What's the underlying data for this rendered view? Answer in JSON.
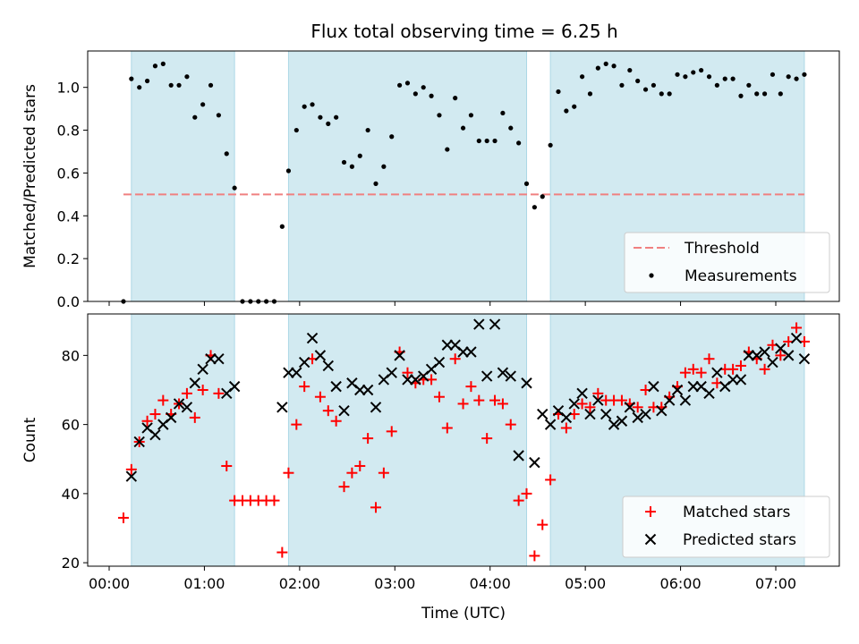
{
  "colors": {
    "shade": "#add8e6",
    "threshold": "#f08080",
    "measurement": "#000000",
    "matched": "#ff0000",
    "predicted": "#000000"
  },
  "chart_data": [
    {
      "type": "scatter",
      "title": "Flux total observing time = 6.25 h",
      "xlabel": "",
      "ylabel": "Matched/Predicted stars",
      "xlim": [
        "00:00",
        "07:30"
      ],
      "ylim": [
        0,
        1.17
      ],
      "yticks": [
        "0.0",
        "0.2",
        "0.4",
        "0.6",
        "0.8",
        "1.0"
      ],
      "grid": false,
      "legend_position": "lower-right",
      "shaded_intervals": [
        [
          "00:14",
          "01:19"
        ],
        [
          "01:53",
          "04:23"
        ],
        [
          "04:38",
          "07:18"
        ]
      ],
      "threshold": {
        "name": "Threshold",
        "value": 0.5,
        "x_range": [
          "00:09",
          "07:18"
        ],
        "style": "dashed"
      },
      "series": [
        {
          "name": "Measurements",
          "marker": "dot",
          "points": [
            [
              "00:09",
              0.0
            ],
            [
              "00:14",
              1.04
            ],
            [
              "00:19",
              1.0
            ],
            [
              "00:24",
              1.03
            ],
            [
              "00:29",
              1.1
            ],
            [
              "00:34",
              1.11
            ],
            [
              "00:39",
              1.01
            ],
            [
              "00:44",
              1.01
            ],
            [
              "00:49",
              1.05
            ],
            [
              "00:54",
              0.86
            ],
            [
              "00:59",
              0.92
            ],
            [
              "01:04",
              1.01
            ],
            [
              "01:09",
              0.87
            ],
            [
              "01:14",
              0.69
            ],
            [
              "01:19",
              0.53
            ],
            [
              "01:24",
              0.0
            ],
            [
              "01:29",
              0.0
            ],
            [
              "01:34",
              0.0
            ],
            [
              "01:39",
              0.0
            ],
            [
              "01:44",
              0.0
            ],
            [
              "01:49",
              0.35
            ],
            [
              "01:53",
              0.61
            ],
            [
              "01:58",
              0.8
            ],
            [
              "02:03",
              0.91
            ],
            [
              "02:08",
              0.92
            ],
            [
              "02:13",
              0.86
            ],
            [
              "02:18",
              0.83
            ],
            [
              "02:23",
              0.86
            ],
            [
              "02:28",
              0.65
            ],
            [
              "02:33",
              0.63
            ],
            [
              "02:38",
              0.68
            ],
            [
              "02:43",
              0.8
            ],
            [
              "02:48",
              0.55
            ],
            [
              "02:53",
              0.63
            ],
            [
              "02:58",
              0.77
            ],
            [
              "03:03",
              1.01
            ],
            [
              "03:08",
              1.02
            ],
            [
              "03:13",
              0.97
            ],
            [
              "03:18",
              1.0
            ],
            [
              "03:23",
              0.96
            ],
            [
              "03:28",
              0.87
            ],
            [
              "03:33",
              0.71
            ],
            [
              "03:38",
              0.95
            ],
            [
              "03:43",
              0.81
            ],
            [
              "03:48",
              0.87
            ],
            [
              "03:53",
              0.75
            ],
            [
              "03:58",
              0.75
            ],
            [
              "04:03",
              0.75
            ],
            [
              "04:08",
              0.88
            ],
            [
              "04:13",
              0.81
            ],
            [
              "04:18",
              0.74
            ],
            [
              "04:23",
              0.55
            ],
            [
              "04:28",
              0.44
            ],
            [
              "04:33",
              0.49
            ],
            [
              "04:38",
              0.73
            ],
            [
              "04:43",
              0.98
            ],
            [
              "04:48",
              0.89
            ],
            [
              "04:53",
              0.91
            ],
            [
              "04:58",
              1.05
            ],
            [
              "05:03",
              0.97
            ],
            [
              "05:08",
              1.09
            ],
            [
              "05:13",
              1.11
            ],
            [
              "05:18",
              1.1
            ],
            [
              "05:23",
              1.01
            ],
            [
              "05:28",
              1.08
            ],
            [
              "05:33",
              1.03
            ],
            [
              "05:38",
              0.99
            ],
            [
              "05:43",
              1.01
            ],
            [
              "05:48",
              0.97
            ],
            [
              "05:53",
              0.97
            ],
            [
              "05:58",
              1.06
            ],
            [
              "06:03",
              1.05
            ],
            [
              "06:08",
              1.07
            ],
            [
              "06:13",
              1.08
            ],
            [
              "06:18",
              1.05
            ],
            [
              "06:23",
              1.01
            ],
            [
              "06:28",
              1.04
            ],
            [
              "06:33",
              1.04
            ],
            [
              "06:38",
              0.96
            ],
            [
              "06:43",
              1.01
            ],
            [
              "06:48",
              0.97
            ],
            [
              "06:53",
              0.97
            ],
            [
              "06:58",
              1.06
            ],
            [
              "07:03",
              0.97
            ],
            [
              "07:08",
              1.05
            ],
            [
              "07:13",
              1.04
            ],
            [
              "07:18",
              1.06
            ]
          ]
        }
      ]
    },
    {
      "type": "scatter",
      "title": "",
      "xlabel": "Time (UTC)",
      "ylabel": "Count",
      "xlim": [
        "00:00",
        "07:30"
      ],
      "ylim": [
        19,
        92
      ],
      "xticks": [
        "00:00",
        "01:00",
        "02:00",
        "03:00",
        "04:00",
        "05:00",
        "06:00",
        "07:00"
      ],
      "yticks": [
        "20",
        "40",
        "60",
        "80"
      ],
      "grid": false,
      "legend_position": "lower-right",
      "shaded_intervals": [
        [
          "00:14",
          "01:19"
        ],
        [
          "01:53",
          "04:23"
        ],
        [
          "04:38",
          "07:18"
        ]
      ],
      "series": [
        {
          "name": "Matched stars",
          "marker": "plus",
          "points": [
            [
              "00:09",
              33
            ],
            [
              "00:14",
              47
            ],
            [
              "00:19",
              55
            ],
            [
              "00:24",
              61
            ],
            [
              "00:29",
              63
            ],
            [
              "00:34",
              67
            ],
            [
              "00:39",
              63
            ],
            [
              "00:44",
              66
            ],
            [
              "00:49",
              69
            ],
            [
              "00:54",
              62
            ],
            [
              "00:59",
              70
            ],
            [
              "01:04",
              80
            ],
            [
              "01:09",
              69
            ],
            [
              "01:14",
              48
            ],
            [
              "01:19",
              38
            ],
            [
              "01:24",
              38
            ],
            [
              "01:29",
              38
            ],
            [
              "01:34",
              38
            ],
            [
              "01:39",
              38
            ],
            [
              "01:44",
              38
            ],
            [
              "01:49",
              23
            ],
            [
              "01:53",
              46
            ],
            [
              "01:58",
              60
            ],
            [
              "02:03",
              71
            ],
            [
              "02:08",
              79
            ],
            [
              "02:13",
              68
            ],
            [
              "02:18",
              64
            ],
            [
              "02:23",
              61
            ],
            [
              "02:28",
              42
            ],
            [
              "02:33",
              46
            ],
            [
              "02:38",
              48
            ],
            [
              "02:43",
              56
            ],
            [
              "02:48",
              36
            ],
            [
              "02:53",
              46
            ],
            [
              "02:58",
              58
            ],
            [
              "03:03",
              81
            ],
            [
              "03:08",
              75
            ],
            [
              "03:13",
              72
            ],
            [
              "03:18",
              73
            ],
            [
              "03:23",
              73
            ],
            [
              "03:28",
              68
            ],
            [
              "03:33",
              59
            ],
            [
              "03:38",
              79
            ],
            [
              "03:43",
              66
            ],
            [
              "03:48",
              71
            ],
            [
              "03:53",
              67
            ],
            [
              "03:58",
              56
            ],
            [
              "04:03",
              67
            ],
            [
              "04:08",
              66
            ],
            [
              "04:13",
              60
            ],
            [
              "04:18",
              38
            ],
            [
              "04:23",
              40
            ],
            [
              "04:28",
              22
            ],
            [
              "04:33",
              31
            ],
            [
              "04:38",
              44
            ],
            [
              "04:43",
              63
            ],
            [
              "04:48",
              59
            ],
            [
              "04:53",
              63
            ],
            [
              "04:58",
              66
            ],
            [
              "05:03",
              65
            ],
            [
              "05:08",
              69
            ],
            [
              "05:13",
              67
            ],
            [
              "05:18",
              67
            ],
            [
              "05:23",
              67
            ],
            [
              "05:28",
              66
            ],
            [
              "05:33",
              65
            ],
            [
              "05:38",
              70
            ],
            [
              "05:43",
              65
            ],
            [
              "05:48",
              65
            ],
            [
              "05:53",
              68
            ],
            [
              "05:58",
              71
            ],
            [
              "06:03",
              75
            ],
            [
              "06:08",
              76
            ],
            [
              "06:13",
              75
            ],
            [
              "06:18",
              79
            ],
            [
              "06:23",
              72
            ],
            [
              "06:28",
              76
            ],
            [
              "06:33",
              76
            ],
            [
              "06:38",
              77
            ],
            [
              "06:43",
              81
            ],
            [
              "06:48",
              79
            ],
            [
              "06:53",
              76
            ],
            [
              "06:58",
              83
            ],
            [
              "07:03",
              80
            ],
            [
              "07:08",
              84
            ],
            [
              "07:13",
              88
            ],
            [
              "07:18",
              84
            ]
          ]
        },
        {
          "name": "Predicted stars",
          "marker": "x",
          "points": [
            [
              "00:14",
              45
            ],
            [
              "00:19",
              55
            ],
            [
              "00:24",
              59
            ],
            [
              "00:29",
              57
            ],
            [
              "00:34",
              60
            ],
            [
              "00:39",
              62
            ],
            [
              "00:44",
              66
            ],
            [
              "00:49",
              65
            ],
            [
              "00:54",
              72
            ],
            [
              "00:59",
              76
            ],
            [
              "01:04",
              79
            ],
            [
              "01:09",
              79
            ],
            [
              "01:14",
              69
            ],
            [
              "01:19",
              71
            ],
            [
              "01:49",
              65
            ],
            [
              "01:53",
              75
            ],
            [
              "01:58",
              75
            ],
            [
              "02:03",
              78
            ],
            [
              "02:08",
              85
            ],
            [
              "02:13",
              80
            ],
            [
              "02:18",
              77
            ],
            [
              "02:23",
              71
            ],
            [
              "02:28",
              64
            ],
            [
              "02:33",
              72
            ],
            [
              "02:38",
              70
            ],
            [
              "02:43",
              70
            ],
            [
              "02:48",
              65
            ],
            [
              "02:53",
              73
            ],
            [
              "02:58",
              75
            ],
            [
              "03:03",
              80
            ],
            [
              "03:08",
              73
            ],
            [
              "03:13",
              73
            ],
            [
              "03:18",
              74
            ],
            [
              "03:23",
              76
            ],
            [
              "03:28",
              78
            ],
            [
              "03:33",
              83
            ],
            [
              "03:38",
              83
            ],
            [
              "03:43",
              81
            ],
            [
              "03:48",
              81
            ],
            [
              "03:53",
              89
            ],
            [
              "03:58",
              74
            ],
            [
              "04:03",
              89
            ],
            [
              "04:08",
              75
            ],
            [
              "04:13",
              74
            ],
            [
              "04:18",
              51
            ],
            [
              "04:23",
              72
            ],
            [
              "04:28",
              49
            ],
            [
              "04:33",
              63
            ],
            [
              "04:38",
              60
            ],
            [
              "04:43",
              64
            ],
            [
              "04:48",
              62
            ],
            [
              "04:53",
              66
            ],
            [
              "04:58",
              69
            ],
            [
              "05:03",
              63
            ],
            [
              "05:08",
              67
            ],
            [
              "05:13",
              63
            ],
            [
              "05:18",
              60
            ],
            [
              "05:23",
              61
            ],
            [
              "05:28",
              65
            ],
            [
              "05:33",
              62
            ],
            [
              "05:38",
              63
            ],
            [
              "05:43",
              71
            ],
            [
              "05:48",
              64
            ],
            [
              "05:53",
              67
            ],
            [
              "05:58",
              70
            ],
            [
              "06:03",
              67
            ],
            [
              "06:08",
              71
            ],
            [
              "06:13",
              71
            ],
            [
              "06:18",
              69
            ],
            [
              "06:23",
              75
            ],
            [
              "06:28",
              71
            ],
            [
              "06:33",
              73
            ],
            [
              "06:38",
              73
            ],
            [
              "06:43",
              80
            ],
            [
              "06:48",
              80
            ],
            [
              "06:53",
              81
            ],
            [
              "06:58",
              78
            ],
            [
              "07:03",
              82
            ],
            [
              "07:08",
              80
            ],
            [
              "07:13",
              85
            ],
            [
              "07:18",
              79
            ]
          ]
        }
      ]
    }
  ]
}
